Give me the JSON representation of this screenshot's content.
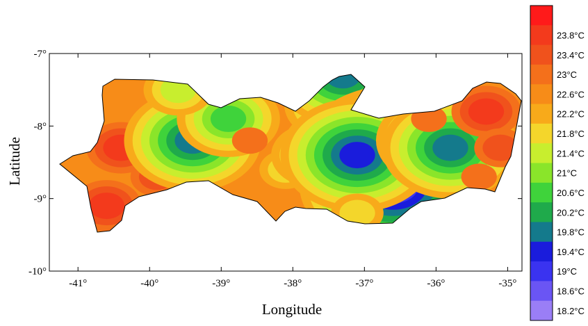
{
  "chart_data": {
    "type": "heatmap",
    "title": "",
    "xlabel": "Longitude",
    "ylabel": "Latitude",
    "xlim": [
      -41.4,
      -34.8
    ],
    "ylim": [
      -10,
      -7
    ],
    "x_ticks": [
      {
        "value": -41,
        "label": "-41°"
      },
      {
        "value": -40,
        "label": "-40°"
      },
      {
        "value": -39,
        "label": "-39°"
      },
      {
        "value": -38,
        "label": "-38°"
      },
      {
        "value": -37,
        "label": "-37°"
      },
      {
        "value": -36,
        "label": "-36°"
      },
      {
        "value": -35,
        "label": "-35°"
      }
    ],
    "y_ticks": [
      {
        "value": -7,
        "label": "-7°"
      },
      {
        "value": -8,
        "label": "-8°"
      },
      {
        "value": -9,
        "label": "-9°"
      },
      {
        "value": -10,
        "label": "-10°"
      }
    ],
    "colorbar": [
      {
        "label": "",
        "color": "#ff1a1a"
      },
      {
        "label": "23.8°C",
        "color": "#f33a1c"
      },
      {
        "label": "23.4°C",
        "color": "#f0521c"
      },
      {
        "label": "23°C",
        "color": "#f4701b"
      },
      {
        "label": "22.6°C",
        "color": "#f78c18"
      },
      {
        "label": "22.2°C",
        "color": "#f8aa1a"
      },
      {
        "label": "21.8°C",
        "color": "#f4d62b"
      },
      {
        "label": "21.4°C",
        "color": "#c8ee2e"
      },
      {
        "label": "21°C",
        "color": "#8ae52a"
      },
      {
        "label": "20.6°C",
        "color": "#3fd33b"
      },
      {
        "label": "20.2°C",
        "color": "#1faa4b"
      },
      {
        "label": "19.8°C",
        "color": "#147a8c"
      },
      {
        "label": "19.4°C",
        "color": "#1a1cdc"
      },
      {
        "label": "19°C",
        "color": "#3a33f0"
      },
      {
        "label": "18.6°C",
        "color": "#6a55f4"
      },
      {
        "label": "18.2°C",
        "color": "#9a7ef6"
      }
    ],
    "fields": [
      {
        "x": -40.4,
        "y": -8.3,
        "temp": 23.6
      },
      {
        "x": -40.6,
        "y": -9.1,
        "temp": 23.8
      },
      {
        "x": -39.9,
        "y": -8.7,
        "temp": 23.4
      },
      {
        "x": -39.4,
        "y": -8.2,
        "temp": 20.0
      },
      {
        "x": -38.9,
        "y": -7.9,
        "temp": 20.8
      },
      {
        "x": -39.6,
        "y": -7.5,
        "temp": 21.6
      },
      {
        "x": -38.6,
        "y": -8.2,
        "temp": 22.8
      },
      {
        "x": -38.1,
        "y": -8.6,
        "temp": 22.0
      },
      {
        "x": -37.7,
        "y": -8.4,
        "temp": 21.2
      },
      {
        "x": -37.4,
        "y": -7.7,
        "temp": 20.8
      },
      {
        "x": -37.3,
        "y": -7.3,
        "temp": 19.8
      },
      {
        "x": -36.6,
        "y": -8.4,
        "temp": 18.8
      },
      {
        "x": -36.6,
        "y": -8.8,
        "temp": 18.6
      },
      {
        "x": -37.1,
        "y": -8.4,
        "temp": 19.6
      },
      {
        "x": -36.0,
        "y": -8.2,
        "temp": 20.4
      },
      {
        "x": -35.8,
        "y": -8.3,
        "temp": 19.8
      },
      {
        "x": -36.1,
        "y": -7.9,
        "temp": 22.8
      },
      {
        "x": -35.3,
        "y": -7.8,
        "temp": 23.6
      },
      {
        "x": -35.1,
        "y": -8.3,
        "temp": 23.4
      },
      {
        "x": -35.4,
        "y": -8.7,
        "temp": 22.8
      },
      {
        "x": -37.1,
        "y": -9.2,
        "temp": 22.0
      }
    ],
    "grid": false,
    "legend": "right"
  }
}
